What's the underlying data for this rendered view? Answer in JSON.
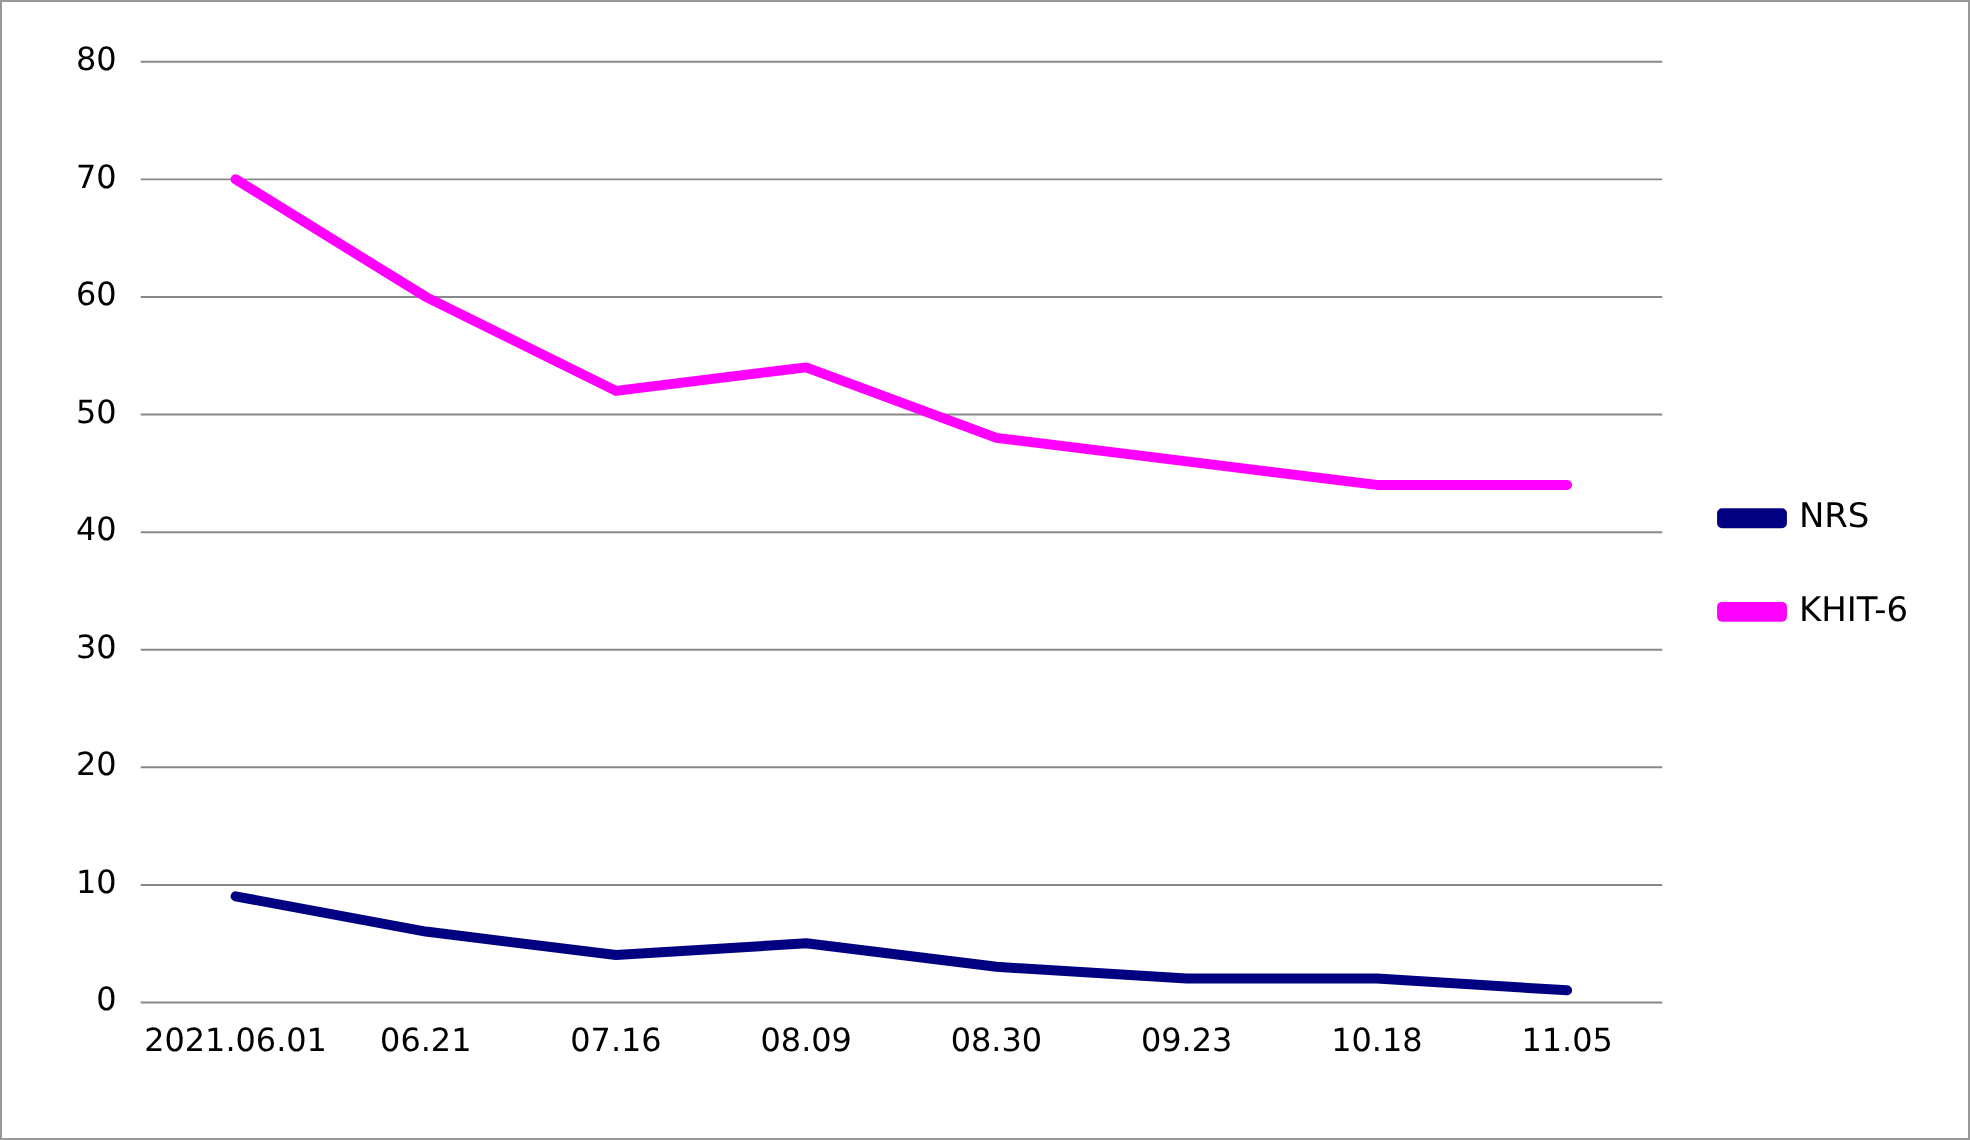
{
  "chart_data": {
    "type": "line",
    "categories": [
      "2021.06.01",
      "06.21",
      "07.16",
      "08.09",
      "08.30",
      "09.23",
      "10.18",
      "11.05"
    ],
    "series": [
      {
        "name": "NRS",
        "color": "#000080",
        "values": [
          9,
          6,
          4,
          5,
          3,
          2,
          2,
          1
        ]
      },
      {
        "name": "KHIT-6",
        "color": "#ff00ff",
        "values": [
          70,
          60,
          52,
          54,
          48,
          46,
          44,
          44
        ]
      }
    ],
    "ylim": [
      0,
      80
    ],
    "yticks": [
      0,
      10,
      20,
      30,
      40,
      50,
      60,
      70,
      80
    ],
    "grid": "y",
    "legend": "right",
    "marker": "none",
    "line_style": "solid"
  }
}
